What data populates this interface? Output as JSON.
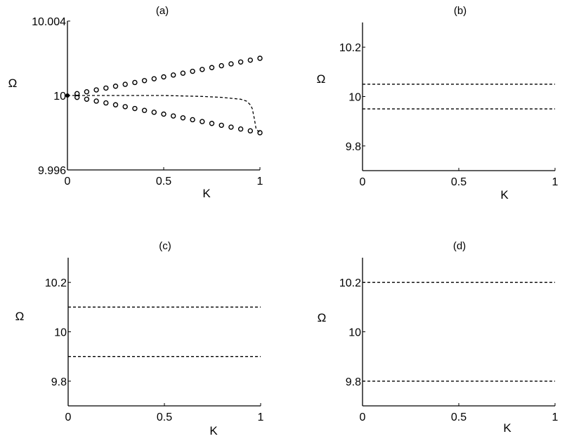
{
  "chart_data": [
    {
      "type": "scatter",
      "title": "(a)",
      "xlabel": "K",
      "ylabel": "Ω",
      "xlim": [
        0,
        1
      ],
      "ylim": [
        9.996,
        10.004
      ],
      "xticks": [
        "0",
        "0.5",
        "1"
      ],
      "yticks": [
        "9.996",
        "10",
        "10.004"
      ],
      "series": [
        {
          "style": "circles",
          "x": [
            0.05,
            0.1,
            0.15,
            0.2,
            0.25,
            0.3,
            0.35,
            0.4,
            0.45,
            0.5,
            0.55,
            0.6,
            0.65,
            0.7,
            0.75,
            0.8,
            0.85,
            0.9,
            0.95,
            1.0
          ],
          "y": [
            10.0001,
            10.0002,
            10.0003,
            10.0004,
            10.0005,
            10.0006,
            10.0007,
            10.0008,
            10.0009,
            10.001,
            10.0011,
            10.0012,
            10.0013,
            10.0014,
            10.0015,
            10.0016,
            10.0017,
            10.0018,
            10.0019,
            10.002
          ]
        },
        {
          "style": "circles",
          "x": [
            0.05,
            0.1,
            0.15,
            0.2,
            0.25,
            0.3,
            0.35,
            0.4,
            0.45,
            0.5,
            0.55,
            0.6,
            0.65,
            0.7,
            0.75,
            0.8,
            0.85,
            0.9,
            0.95,
            1.0
          ],
          "y": [
            9.9999,
            9.9998,
            9.9997,
            9.9996,
            9.9995,
            9.9994,
            9.9993,
            9.9992,
            9.9991,
            9.999,
            9.9989,
            9.9988,
            9.9987,
            9.9986,
            9.9985,
            9.9984,
            9.9983,
            9.9982,
            9.9981,
            9.998
          ]
        },
        {
          "style": "dashed",
          "x": [
            0,
            0.3,
            0.5,
            0.7,
            0.8,
            0.85,
            0.9,
            0.93,
            0.95,
            0.96,
            0.97,
            0.98,
            1.0
          ],
          "y": [
            10.0,
            10.0,
            10.0,
            9.99995,
            9.9999,
            9.99985,
            9.9998,
            9.9997,
            9.9995,
            9.9993,
            9.9988,
            9.9982,
            9.998
          ]
        }
      ],
      "points": [
        {
          "style": "dot",
          "x": 0,
          "y": 10.0
        }
      ]
    },
    {
      "type": "line",
      "title": "(b)",
      "xlabel": "K",
      "ylabel": "Ω",
      "xlim": [
        0,
        1
      ],
      "ylim": [
        9.7,
        10.3
      ],
      "xticks": [
        "0",
        "0.5",
        "1"
      ],
      "yticks": [
        "9.8",
        "10",
        "10.2"
      ],
      "series": [
        {
          "style": "dashed",
          "x": [
            0,
            1
          ],
          "y": [
            10.05,
            10.05
          ]
        },
        {
          "style": "dashed",
          "x": [
            0,
            1
          ],
          "y": [
            9.95,
            9.95
          ]
        }
      ]
    },
    {
      "type": "line",
      "title": "(c)",
      "xlabel": "K",
      "ylabel": "Ω",
      "xlim": [
        0,
        1
      ],
      "ylim": [
        9.7,
        10.3
      ],
      "xticks": [
        "0",
        "0.5",
        "1"
      ],
      "yticks": [
        "9.8",
        "10",
        "10.2"
      ],
      "series": [
        {
          "style": "dashed",
          "x": [
            0,
            1
          ],
          "y": [
            10.1,
            10.1
          ]
        },
        {
          "style": "dashed",
          "x": [
            0,
            1
          ],
          "y": [
            9.9,
            9.9
          ]
        }
      ]
    },
    {
      "type": "line",
      "title": "(d)",
      "xlabel": "K",
      "ylabel": "Ω",
      "xlim": [
        0,
        1
      ],
      "ylim": [
        9.7,
        10.3
      ],
      "xticks": [
        "0",
        "0.5",
        "1"
      ],
      "yticks": [
        "9.8",
        "10",
        "10.2"
      ],
      "series": [
        {
          "style": "dashed",
          "x": [
            0,
            1
          ],
          "y": [
            10.2,
            10.2
          ]
        },
        {
          "style": "dashed",
          "x": [
            0,
            1
          ],
          "y": [
            9.8,
            9.8
          ]
        }
      ]
    }
  ]
}
